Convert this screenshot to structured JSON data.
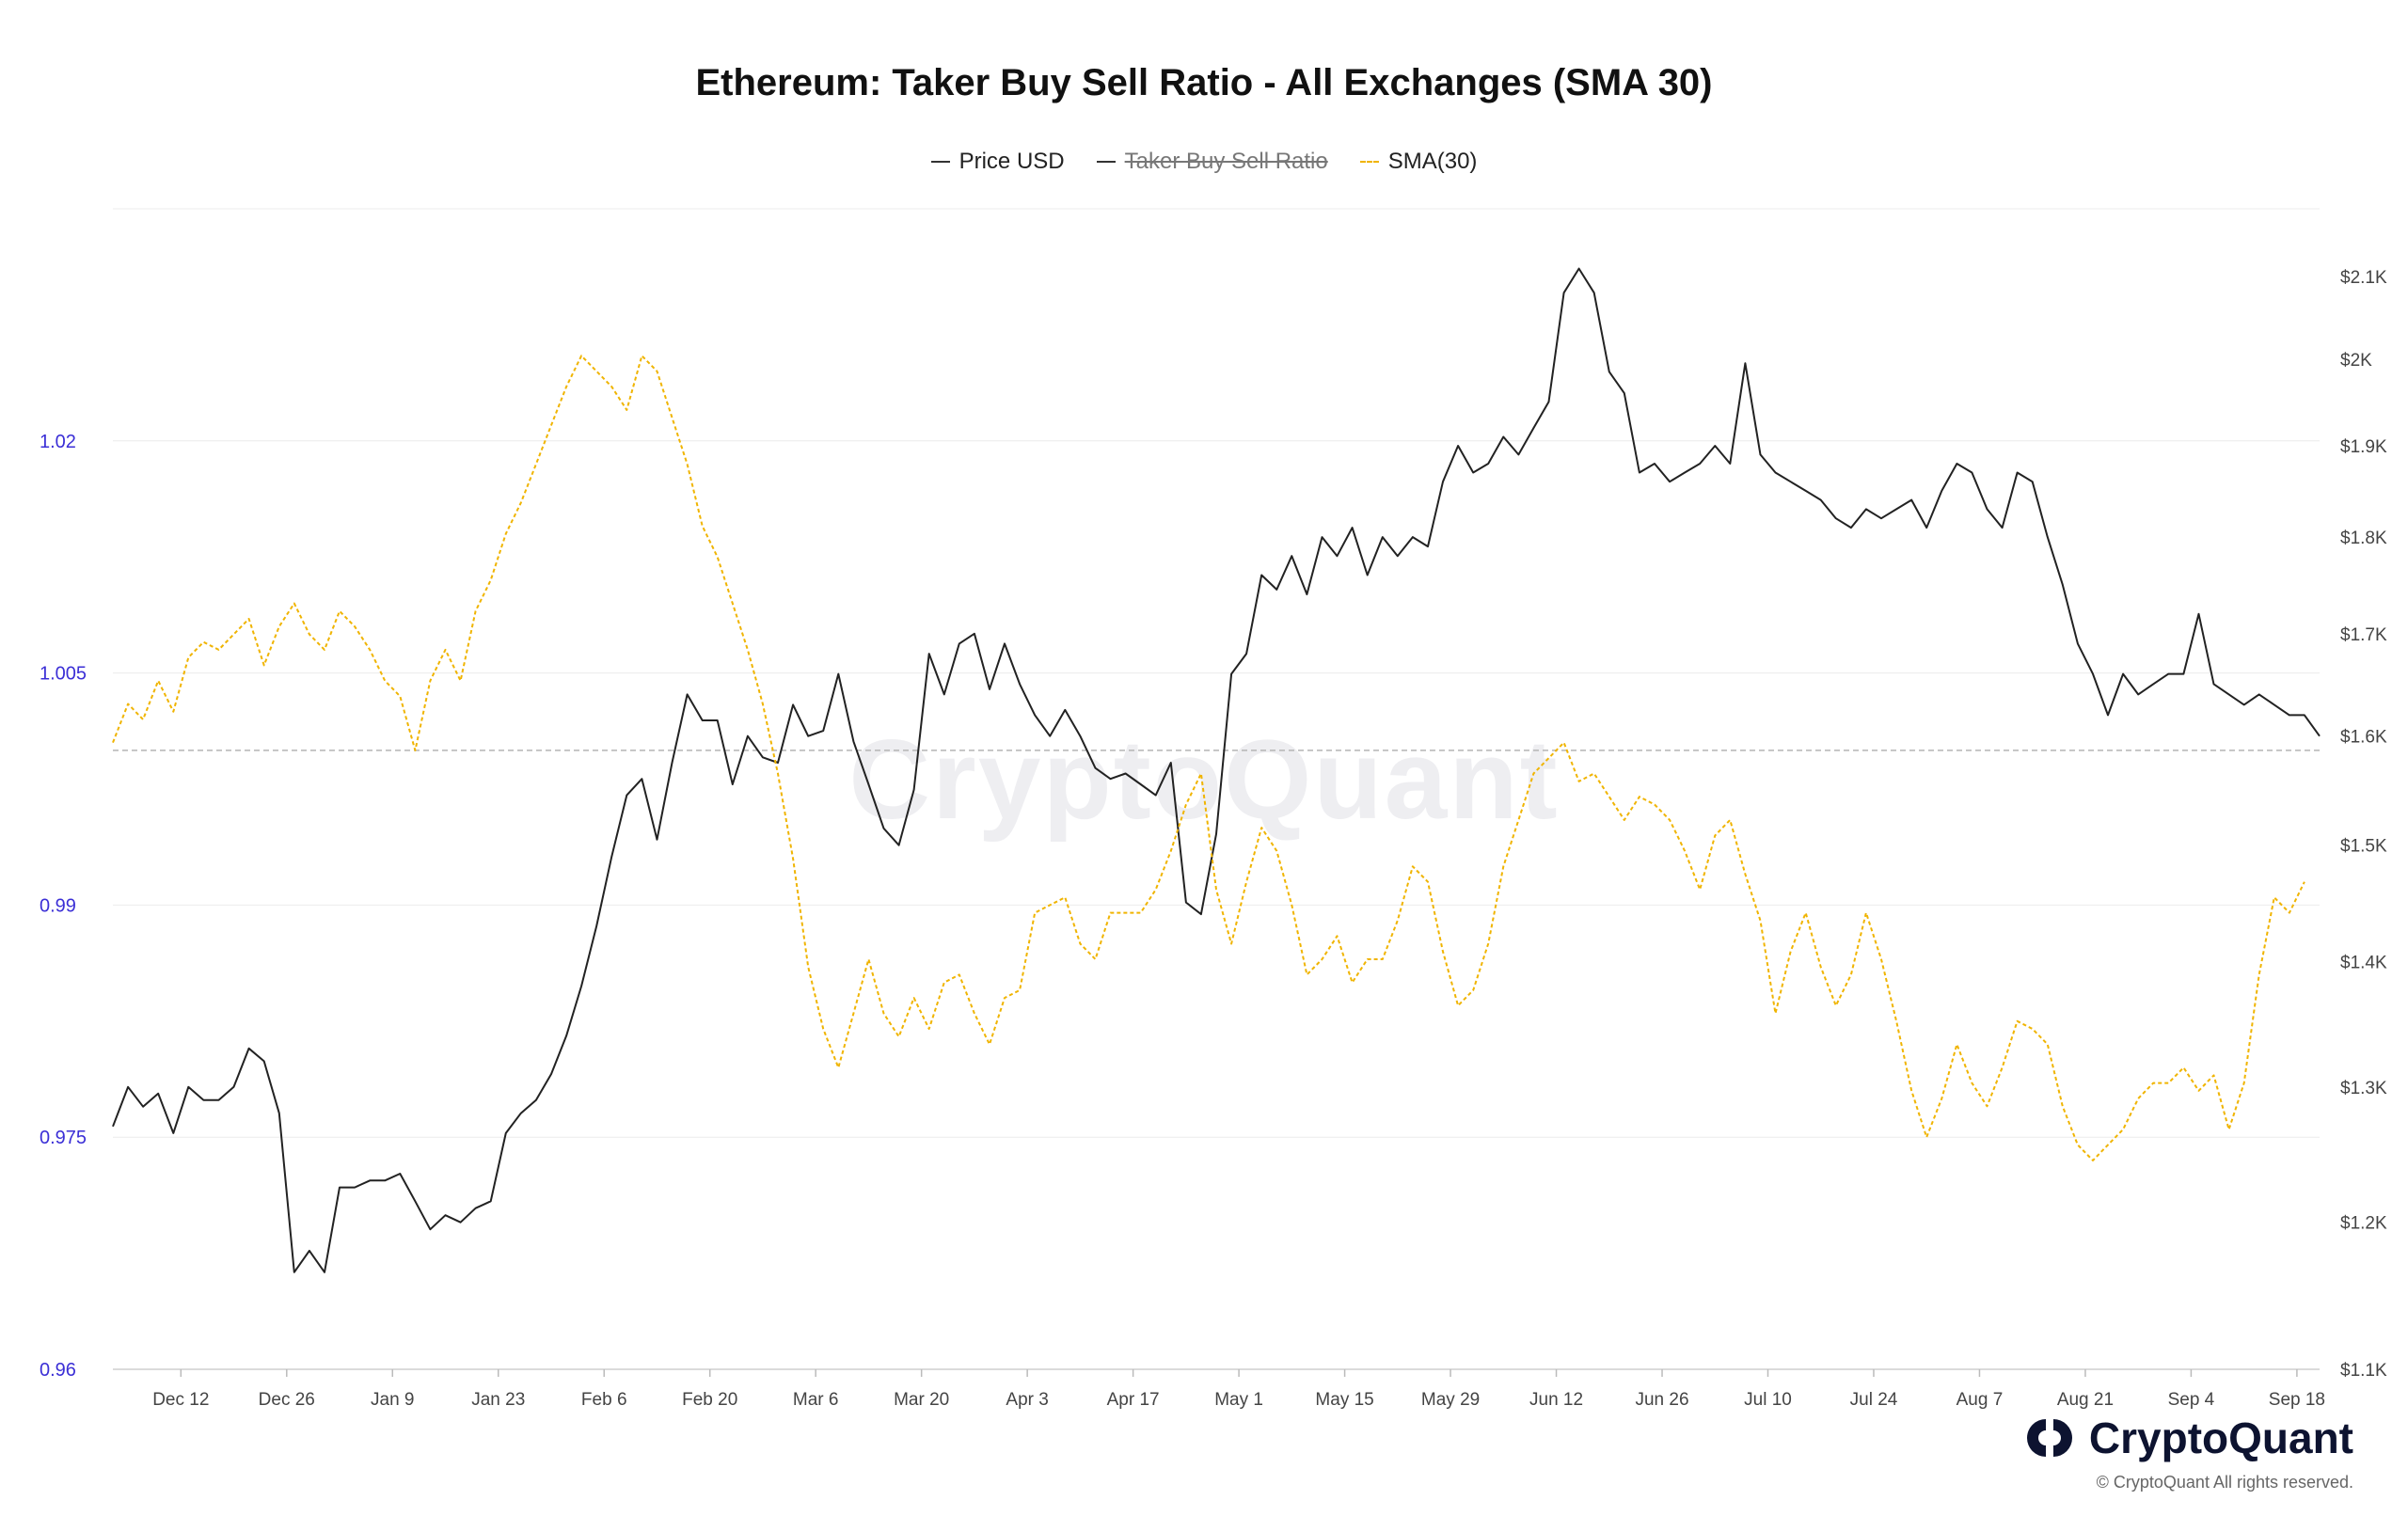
{
  "title": "Ethereum: Taker Buy Sell Ratio - All Exchanges (SMA 30)",
  "legend": [
    {
      "label": "Price USD",
      "style": "solid",
      "color": "#333333",
      "enabled": true
    },
    {
      "label": "Taker Buy Sell Ratio",
      "style": "solid",
      "color": "#555555",
      "enabled": false
    },
    {
      "label": "SMA(30)",
      "style": "dashed",
      "color": "#f0b400",
      "enabled": true
    }
  ],
  "watermark": "CryptoQuant",
  "brand": {
    "name": "CryptoQuant",
    "copyright": "© CryptoQuant All rights reserved."
  },
  "chart_data": {
    "type": "line",
    "title": "Ethereum: Taker Buy Sell Ratio - All Exchanges (SMA 30)",
    "x_tick_labels": [
      "Dec 12",
      "Dec 26",
      "Jan 9",
      "Jan 23",
      "Feb 6",
      "Feb 20",
      "Mar 6",
      "Mar 20",
      "Apr 3",
      "Apr 17",
      "May 1",
      "May 15",
      "May 29",
      "Jun 12",
      "Jun 26",
      "Jul 10",
      "Jul 24",
      "Aug 7",
      "Aug 21",
      "Sep 4",
      "Sep 18"
    ],
    "x_tick_day_index": [
      7,
      21,
      35,
      49,
      63,
      77,
      91,
      105,
      119,
      133,
      147,
      161,
      175,
      189,
      203,
      217,
      231,
      245,
      259,
      273,
      287
    ],
    "x_range_days": [
      -2,
      290
    ],
    "left_axis": {
      "ticks": [
        "0.96",
        "0.975",
        "0.99",
        "1.005",
        "1.02"
      ],
      "ylim": [
        0.96,
        1.035
      ],
      "color": "#3b2fd6"
    },
    "right_axis": {
      "ticks": [
        "$1.1K",
        "$1.2K",
        "$1.3K",
        "$1.4K",
        "$1.5K",
        "$1.6K",
        "$1.7K",
        "$1.8K",
        "$1.9K",
        "$2K",
        "$2.1K"
      ],
      "ylim": [
        1100,
        2186
      ],
      "log": true
    },
    "reference_line": 1.0,
    "grid": true,
    "legend_position": "top-center",
    "series": [
      {
        "name": "Price USD",
        "axis": "right",
        "color": "#222222",
        "points": [
          [
            -2,
            1270
          ],
          [
            0,
            1300
          ],
          [
            2,
            1285
          ],
          [
            4,
            1295
          ],
          [
            6,
            1265
          ],
          [
            8,
            1300
          ],
          [
            10,
            1290
          ],
          [
            12,
            1290
          ],
          [
            14,
            1300
          ],
          [
            16,
            1330
          ],
          [
            18,
            1320
          ],
          [
            20,
            1280
          ],
          [
            22,
            1165
          ],
          [
            24,
            1180
          ],
          [
            26,
            1165
          ],
          [
            28,
            1225
          ],
          [
            30,
            1225
          ],
          [
            32,
            1230
          ],
          [
            34,
            1230
          ],
          [
            36,
            1235
          ],
          [
            38,
            1215
          ],
          [
            40,
            1195
          ],
          [
            42,
            1205
          ],
          [
            44,
            1200
          ],
          [
            46,
            1210
          ],
          [
            48,
            1215
          ],
          [
            50,
            1265
          ],
          [
            52,
            1280
          ],
          [
            54,
            1290
          ],
          [
            56,
            1310
          ],
          [
            58,
            1340
          ],
          [
            60,
            1380
          ],
          [
            62,
            1430
          ],
          [
            64,
            1490
          ],
          [
            66,
            1545
          ],
          [
            68,
            1560
          ],
          [
            70,
            1505
          ],
          [
            72,
            1575
          ],
          [
            74,
            1640
          ],
          [
            76,
            1615
          ],
          [
            78,
            1615
          ],
          [
            80,
            1555
          ],
          [
            82,
            1600
          ],
          [
            84,
            1580
          ],
          [
            86,
            1575
          ],
          [
            88,
            1630
          ],
          [
            90,
            1600
          ],
          [
            92,
            1605
          ],
          [
            94,
            1660
          ],
          [
            96,
            1595
          ],
          [
            98,
            1555
          ],
          [
            100,
            1515
          ],
          [
            102,
            1500
          ],
          [
            104,
            1550
          ],
          [
            106,
            1680
          ],
          [
            108,
            1640
          ],
          [
            110,
            1690
          ],
          [
            112,
            1700
          ],
          [
            114,
            1645
          ],
          [
            116,
            1690
          ],
          [
            118,
            1650
          ],
          [
            120,
            1620
          ],
          [
            122,
            1600
          ],
          [
            124,
            1625
          ],
          [
            126,
            1600
          ],
          [
            128,
            1570
          ],
          [
            130,
            1560
          ],
          [
            132,
            1565
          ],
          [
            134,
            1555
          ],
          [
            136,
            1545
          ],
          [
            138,
            1575
          ],
          [
            140,
            1450
          ],
          [
            142,
            1440
          ],
          [
            144,
            1510
          ],
          [
            146,
            1660
          ],
          [
            148,
            1680
          ],
          [
            150,
            1760
          ],
          [
            152,
            1745
          ],
          [
            154,
            1780
          ],
          [
            156,
            1740
          ],
          [
            158,
            1800
          ],
          [
            160,
            1780
          ],
          [
            162,
            1810
          ],
          [
            164,
            1760
          ],
          [
            166,
            1800
          ],
          [
            168,
            1780
          ],
          [
            170,
            1800
          ],
          [
            172,
            1790
          ],
          [
            174,
            1860
          ],
          [
            176,
            1900
          ],
          [
            178,
            1870
          ],
          [
            180,
            1880
          ],
          [
            182,
            1910
          ],
          [
            184,
            1890
          ],
          [
            186,
            1920
          ],
          [
            188,
            1950
          ],
          [
            190,
            2080
          ],
          [
            192,
            2110
          ],
          [
            194,
            2080
          ],
          [
            196,
            1985
          ],
          [
            198,
            1960
          ],
          [
            200,
            1870
          ],
          [
            202,
            1880
          ],
          [
            204,
            1860
          ],
          [
            206,
            1870
          ],
          [
            208,
            1880
          ],
          [
            210,
            1900
          ],
          [
            212,
            1880
          ],
          [
            214,
            1995
          ],
          [
            216,
            1890
          ],
          [
            218,
            1870
          ],
          [
            220,
            1860
          ],
          [
            222,
            1850
          ],
          [
            224,
            1840
          ],
          [
            226,
            1820
          ],
          [
            228,
            1810
          ],
          [
            230,
            1830
          ],
          [
            232,
            1820
          ],
          [
            234,
            1830
          ],
          [
            236,
            1840
          ],
          [
            238,
            1810
          ],
          [
            240,
            1850
          ],
          [
            242,
            1880
          ],
          [
            244,
            1870
          ],
          [
            246,
            1830
          ],
          [
            248,
            1810
          ],
          [
            250,
            1870
          ],
          [
            252,
            1860
          ],
          [
            254,
            1800
          ],
          [
            256,
            1750
          ],
          [
            258,
            1690
          ],
          [
            260,
            1660
          ],
          [
            262,
            1620
          ],
          [
            264,
            1660
          ],
          [
            266,
            1640
          ],
          [
            268,
            1650
          ],
          [
            270,
            1660
          ],
          [
            272,
            1660
          ],
          [
            274,
            1720
          ],
          [
            276,
            1650
          ],
          [
            278,
            1640
          ],
          [
            280,
            1630
          ],
          [
            282,
            1640
          ],
          [
            284,
            1630
          ],
          [
            286,
            1620
          ],
          [
            288,
            1620
          ],
          [
            290,
            1600
          ]
        ]
      },
      {
        "name": "SMA(30)",
        "axis": "left",
        "color": "#f0b400",
        "dashed": true,
        "points": [
          [
            -2,
            1.0005
          ],
          [
            0,
            1.003
          ],
          [
            2,
            1.002
          ],
          [
            4,
            1.0045
          ],
          [
            6,
            1.0025
          ],
          [
            8,
            1.006
          ],
          [
            10,
            1.007
          ],
          [
            12,
            1.0065
          ],
          [
            14,
            1.0075
          ],
          [
            16,
            1.0085
          ],
          [
            18,
            1.0055
          ],
          [
            20,
            1.008
          ],
          [
            22,
            1.0095
          ],
          [
            24,
            1.0075
          ],
          [
            26,
            1.0065
          ],
          [
            28,
            1.009
          ],
          [
            30,
            1.008
          ],
          [
            32,
            1.0065
          ],
          [
            34,
            1.0045
          ],
          [
            36,
            1.0035
          ],
          [
            38,
            1.0
          ],
          [
            40,
            1.0045
          ],
          [
            42,
            1.0065
          ],
          [
            44,
            1.0045
          ],
          [
            46,
            1.009
          ],
          [
            48,
            1.011
          ],
          [
            50,
            1.014
          ],
          [
            52,
            1.016
          ],
          [
            54,
            1.0185
          ],
          [
            56,
            1.021
          ],
          [
            58,
            1.0235
          ],
          [
            60,
            1.0255
          ],
          [
            62,
            1.0245
          ],
          [
            64,
            1.0235
          ],
          [
            66,
            1.022
          ],
          [
            68,
            1.0255
          ],
          [
            70,
            1.0245
          ],
          [
            72,
            1.0215
          ],
          [
            74,
            1.0185
          ],
          [
            76,
            1.0145
          ],
          [
            78,
            1.0125
          ],
          [
            80,
            1.0095
          ],
          [
            82,
            1.0065
          ],
          [
            84,
            1.003
          ],
          [
            86,
            0.9985
          ],
          [
            88,
            0.993
          ],
          [
            90,
            0.986
          ],
          [
            92,
            0.982
          ],
          [
            94,
            0.9795
          ],
          [
            96,
            0.983
          ],
          [
            98,
            0.9865
          ],
          [
            100,
            0.983
          ],
          [
            102,
            0.9815
          ],
          [
            104,
            0.984
          ],
          [
            106,
            0.982
          ],
          [
            108,
            0.985
          ],
          [
            110,
            0.9855
          ],
          [
            112,
            0.983
          ],
          [
            114,
            0.981
          ],
          [
            116,
            0.984
          ],
          [
            118,
            0.9845
          ],
          [
            120,
            0.9895
          ],
          [
            122,
            0.99
          ],
          [
            124,
            0.9905
          ],
          [
            126,
            0.9875
          ],
          [
            128,
            0.9865
          ],
          [
            130,
            0.9895
          ],
          [
            132,
            0.9895
          ],
          [
            134,
            0.9895
          ],
          [
            136,
            0.991
          ],
          [
            138,
            0.9935
          ],
          [
            140,
            0.9965
          ],
          [
            142,
            0.9985
          ],
          [
            144,
            0.991
          ],
          [
            146,
            0.9875
          ],
          [
            148,
            0.9915
          ],
          [
            150,
            0.995
          ],
          [
            152,
            0.9935
          ],
          [
            154,
            0.99
          ],
          [
            156,
            0.9855
          ],
          [
            158,
            0.9865
          ],
          [
            160,
            0.988
          ],
          [
            162,
            0.985
          ],
          [
            164,
            0.9865
          ],
          [
            166,
            0.9865
          ],
          [
            168,
            0.989
          ],
          [
            170,
            0.9925
          ],
          [
            172,
            0.9915
          ],
          [
            174,
            0.987
          ],
          [
            176,
            0.9835
          ],
          [
            178,
            0.9845
          ],
          [
            180,
            0.9875
          ],
          [
            182,
            0.9925
          ],
          [
            184,
            0.9955
          ],
          [
            186,
            0.9985
          ],
          [
            188,
            0.9995
          ],
          [
            190,
            1.0005
          ],
          [
            192,
            0.998
          ],
          [
            194,
            0.9985
          ],
          [
            196,
            0.997
          ],
          [
            198,
            0.9955
          ],
          [
            200,
            0.997
          ],
          [
            202,
            0.9965
          ],
          [
            204,
            0.9955
          ],
          [
            206,
            0.9935
          ],
          [
            208,
            0.991
          ],
          [
            210,
            0.9945
          ],
          [
            212,
            0.9955
          ],
          [
            214,
            0.992
          ],
          [
            216,
            0.989
          ],
          [
            218,
            0.983
          ],
          [
            220,
            0.987
          ],
          [
            222,
            0.9895
          ],
          [
            224,
            0.986
          ],
          [
            226,
            0.9835
          ],
          [
            228,
            0.9855
          ],
          [
            230,
            0.9895
          ],
          [
            232,
            0.9865
          ],
          [
            234,
            0.9825
          ],
          [
            236,
            0.978
          ],
          [
            238,
            0.975
          ],
          [
            240,
            0.9775
          ],
          [
            242,
            0.981
          ],
          [
            244,
            0.9785
          ],
          [
            246,
            0.977
          ],
          [
            248,
            0.9795
          ],
          [
            250,
            0.9825
          ],
          [
            252,
            0.982
          ],
          [
            254,
            0.981
          ],
          [
            256,
            0.977
          ],
          [
            258,
            0.9745
          ],
          [
            260,
            0.9735
          ],
          [
            262,
            0.9745
          ],
          [
            264,
            0.9755
          ],
          [
            266,
            0.9775
          ],
          [
            268,
            0.9785
          ],
          [
            270,
            0.9785
          ],
          [
            272,
            0.9795
          ],
          [
            274,
            0.978
          ],
          [
            276,
            0.979
          ],
          [
            278,
            0.9755
          ],
          [
            280,
            0.9785
          ],
          [
            282,
            0.9855
          ],
          [
            284,
            0.9905
          ],
          [
            286,
            0.9895
          ],
          [
            288,
            0.9915
          ]
        ]
      }
    ]
  }
}
